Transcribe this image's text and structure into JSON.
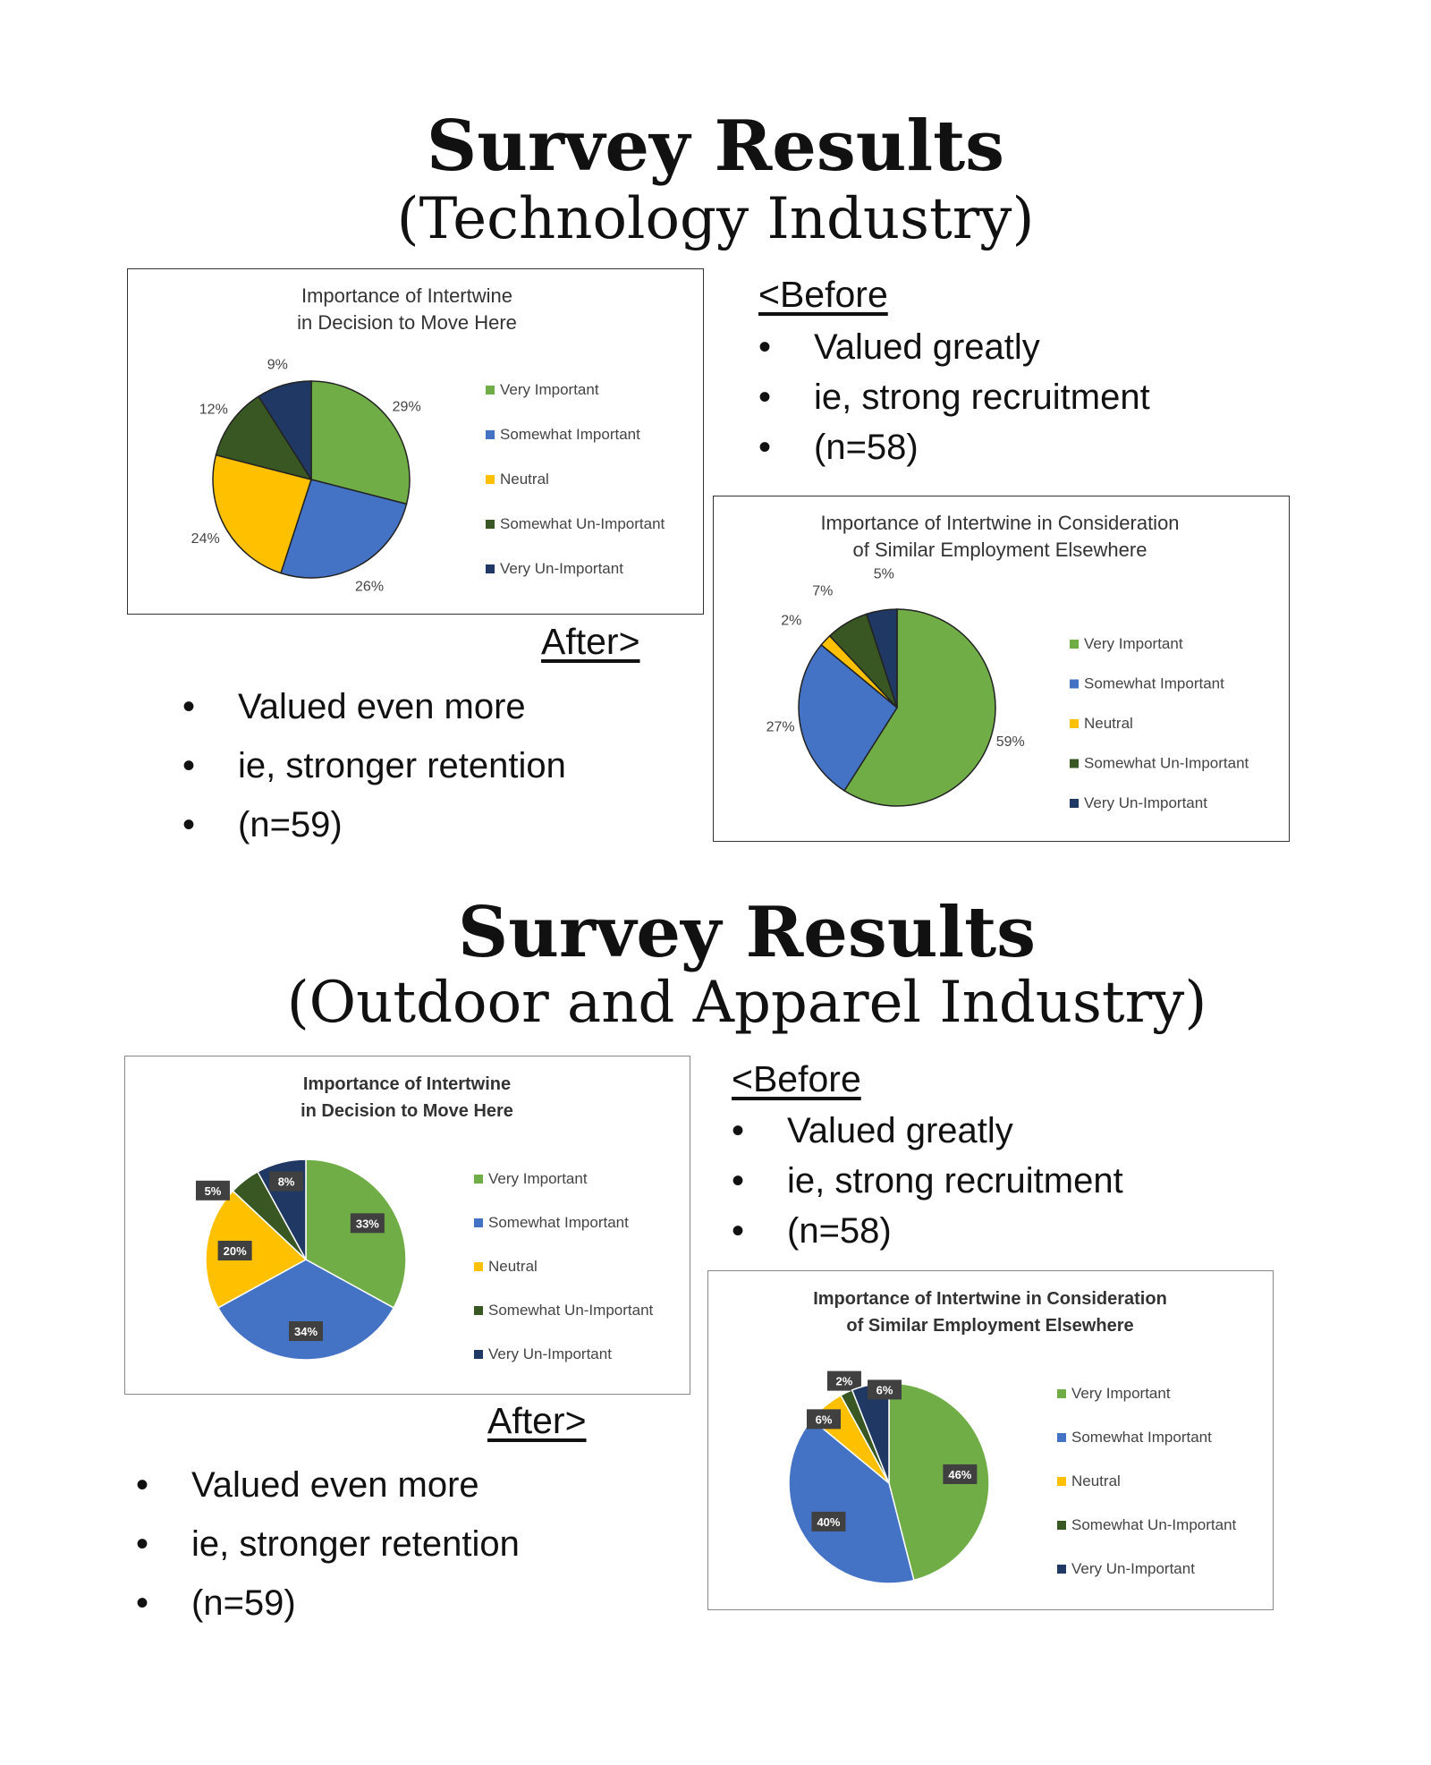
{
  "colors": {
    "very_important": "#70ad47",
    "somewhat_important": "#4472c4",
    "neutral": "#ffc000",
    "somewhat_un_important": "#385723",
    "very_un_important": "#203864"
  },
  "sections": [
    {
      "title": "Survey Results",
      "subtitle": "(Technology Industry)",
      "before": {
        "heading": "<Before",
        "bullets": [
          "Valued greatly",
          "ie, strong recruitment",
          "(n=58)"
        ]
      },
      "after": {
        "heading": "After>",
        "bullets": [
          "Valued even more",
          "ie, stronger retention",
          "(n=59)"
        ]
      }
    },
    {
      "title": "Survey Results",
      "subtitle": "(Outdoor and Apparel  Industry)",
      "before": {
        "heading": "<Before",
        "bullets": [
          "Valued greatly",
          "ie, strong recruitment",
          "(n=58)"
        ]
      },
      "after": {
        "heading": "After>",
        "bullets": [
          "Valued even more",
          "ie, stronger retention",
          "(n=59)"
        ]
      }
    }
  ],
  "chart_data": [
    {
      "type": "pie",
      "title": "Importance of Intertwine in Decision to Move Here",
      "categories": [
        "Very Important",
        "Somewhat Important",
        "Neutral",
        "Somewhat Un-Important",
        "Very Un-Important"
      ],
      "values": [
        29,
        26,
        24,
        12,
        9
      ],
      "labels": [
        "29%",
        "26%",
        "24%",
        "12%",
        "9%"
      ],
      "legend": "right"
    },
    {
      "type": "pie",
      "title": "Importance of Intertwine in Consideration of Similar Employment Elsewhere",
      "categories": [
        "Very Important",
        "Somewhat Important",
        "Neutral",
        "Somewhat Un-Important",
        "Very Un-Important"
      ],
      "values": [
        59,
        27,
        2,
        7,
        5
      ],
      "labels": [
        "59%",
        "27%",
        "2%",
        "7%",
        "5%"
      ],
      "legend": "right"
    },
    {
      "type": "pie",
      "title": "Importance of Intertwine in Decision to Move Here",
      "categories": [
        "Very Important",
        "Somewhat Important",
        "Neutral",
        "Somewhat Un-Important",
        "Very Un-Important"
      ],
      "values": [
        33,
        34,
        20,
        5,
        8
      ],
      "labels": [
        "33%",
        "34%",
        "20%",
        "5%",
        "8%"
      ],
      "legend": "right"
    },
    {
      "type": "pie",
      "title": "Importance of Intertwine in Consideration of Similar Employment Elsewhere",
      "categories": [
        "Very Important",
        "Somewhat Important",
        "Neutral",
        "Somewhat Un-Important",
        "Very Un-Important"
      ],
      "values": [
        46,
        40,
        6,
        2,
        6
      ],
      "labels": [
        "46%",
        "40%",
        "6%",
        "2%",
        "6%"
      ],
      "legend": "right"
    }
  ]
}
